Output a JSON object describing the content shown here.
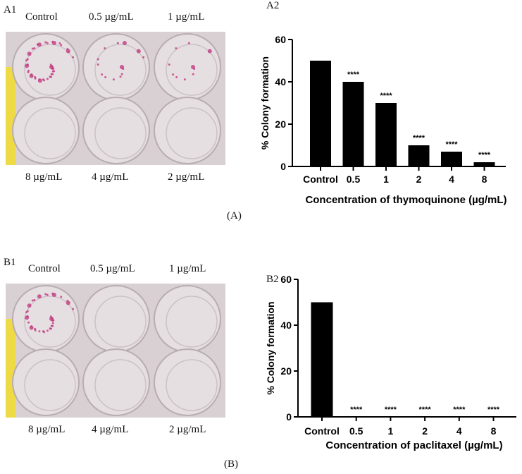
{
  "panels": {
    "A": {
      "caption": "(A)",
      "photo_label": "A1",
      "chart_label": "A2",
      "well_labels_top": [
        "Control",
        "0.5 µg/mL",
        "1 µg/mL"
      ],
      "well_labels_bottom": [
        "8 µg/mL",
        "4 µg/mL",
        "2 µg/mL"
      ]
    },
    "B": {
      "caption": "(B)",
      "photo_label": "B1",
      "chart_label": "B2",
      "well_labels_top": [
        "Control",
        "0.5 µg/mL",
        "1 µg/mL"
      ],
      "well_labels_bottom": [
        "8 µg/mL",
        "4 µg/mL",
        "2 µg/mL"
      ]
    }
  },
  "colors": {
    "bar": "#000000",
    "stain": "#c0307a",
    "plate": "#d9d0d3",
    "tape": "#f2dc20"
  },
  "chart_data": [
    {
      "type": "bar",
      "categories": [
        "Control",
        "0.5",
        "1",
        "2",
        "4",
        "8"
      ],
      "values": [
        50,
        40,
        30,
        10,
        7,
        2
      ],
      "annotations": [
        "",
        "****",
        "****",
        "****",
        "****",
        "****"
      ],
      "xlabel": "Concentration of thymoquinone (µg/mL)",
      "ylabel": "% Colony formation",
      "ylim": [
        0,
        60
      ],
      "yticks": [
        0,
        20,
        40,
        60
      ],
      "grid": false
    },
    {
      "type": "bar",
      "categories": [
        "Control",
        "0.5",
        "1",
        "2",
        "4",
        "8"
      ],
      "values": [
        50,
        0,
        0,
        0,
        0,
        0
      ],
      "annotations": [
        "",
        "****",
        "****",
        "****",
        "****",
        "****"
      ],
      "xlabel": "Concentration of paclitaxel (µg/mL)",
      "ylabel": "% Colony formation",
      "ylim": [
        0,
        60
      ],
      "yticks": [
        0,
        20,
        40,
        60
      ],
      "grid": false
    }
  ]
}
